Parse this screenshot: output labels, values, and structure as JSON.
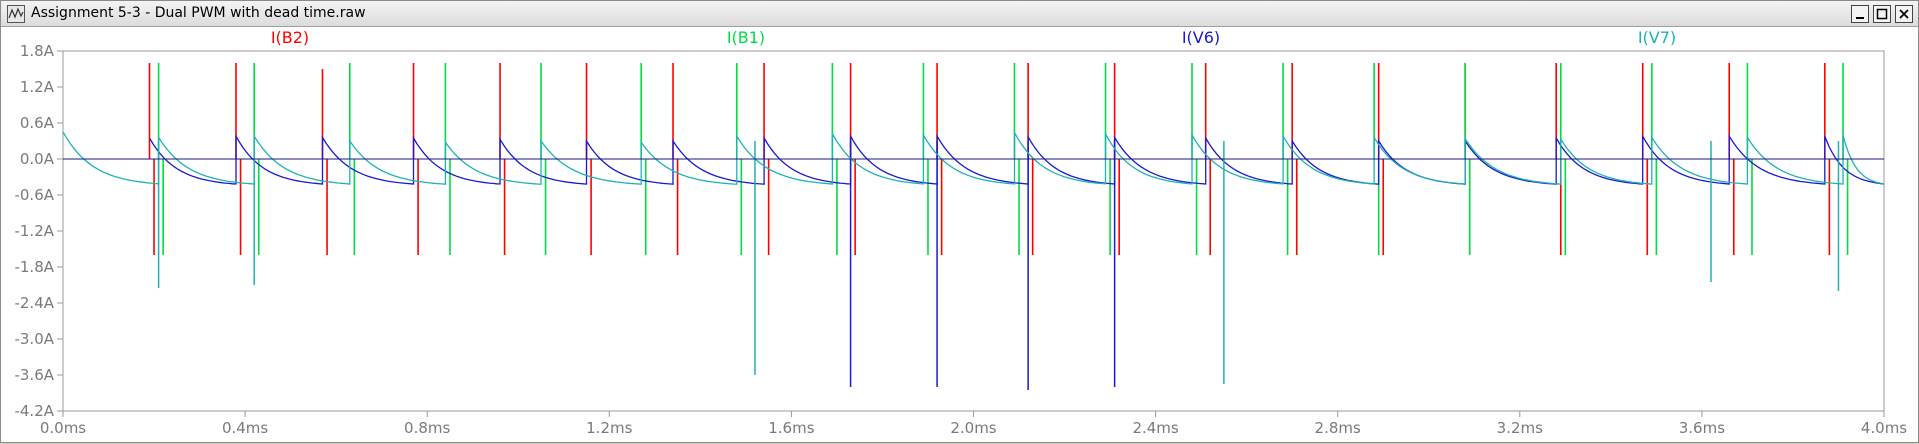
{
  "window": {
    "title": "Assignment 5-3 - Dual PWM with dead time.raw",
    "buttons": {
      "minimize": "minimize",
      "maximize": "maximize",
      "close": "close"
    }
  },
  "chart_data": {
    "type": "line",
    "title": "",
    "xlabel": "",
    "ylabel": "",
    "xlim": [
      0,
      4
    ],
    "ylim": [
      -4.2,
      1.8
    ],
    "x_unit": "ms",
    "y_unit": "A",
    "x_ticks": [
      "0.0ms",
      "0.4ms",
      "0.8ms",
      "1.2ms",
      "1.6ms",
      "2.0ms",
      "2.4ms",
      "2.8ms",
      "3.2ms",
      "3.6ms",
      "4.0ms"
    ],
    "y_ticks": [
      "1.8A",
      "1.2A",
      "0.6A",
      "0.0A",
      "-0.6A",
      "-1.2A",
      "-1.8A",
      "-2.4A",
      "-3.0A",
      "-3.6A",
      "-4.2A"
    ],
    "grid": false,
    "legend": "top",
    "series": [
      {
        "name": "I(B2)",
        "color": "#ff0000",
        "kind": "spikes",
        "events": [
          [
            0.19,
            1.6,
            -1.6
          ],
          [
            0.38,
            1.6,
            -1.6
          ],
          [
            0.57,
            1.5,
            -1.6
          ],
          [
            0.77,
            1.6,
            -1.6
          ],
          [
            0.96,
            1.6,
            -1.6
          ],
          [
            1.15,
            1.6,
            -1.6
          ],
          [
            1.34,
            1.6,
            -1.6
          ],
          [
            1.54,
            1.6,
            -1.6
          ],
          [
            1.73,
            1.6,
            -1.6
          ],
          [
            1.92,
            1.6,
            -1.6
          ],
          [
            2.12,
            1.6,
            -1.6
          ],
          [
            2.31,
            1.6,
            -1.6
          ],
          [
            2.51,
            1.6,
            -1.6
          ],
          [
            2.7,
            1.6,
            -1.6
          ],
          [
            2.89,
            1.6,
            -1.6
          ],
          [
            3.08,
            1.6,
            -1.6
          ],
          [
            3.28,
            1.6,
            -1.6
          ],
          [
            3.47,
            1.6,
            -1.6
          ],
          [
            3.66,
            1.6,
            -1.6
          ],
          [
            3.87,
            1.6,
            -1.6
          ]
        ]
      },
      {
        "name": "I(B1)",
        "color": "#00dd44",
        "kind": "spikes",
        "events": [
          [
            0.21,
            1.6,
            -1.6
          ],
          [
            0.42,
            1.6,
            -1.6
          ],
          [
            0.63,
            1.6,
            -1.6
          ],
          [
            0.84,
            1.6,
            -1.6
          ],
          [
            1.05,
            1.6,
            -1.6
          ],
          [
            1.27,
            1.6,
            -1.6
          ],
          [
            1.48,
            1.6,
            -1.6
          ],
          [
            1.69,
            1.6,
            -1.6
          ],
          [
            1.89,
            1.6,
            -1.6
          ],
          [
            2.09,
            1.6,
            -1.6
          ],
          [
            2.29,
            1.6,
            -1.6
          ],
          [
            2.48,
            1.6,
            -1.6
          ],
          [
            2.68,
            1.6,
            -1.6
          ],
          [
            2.88,
            1.6,
            -1.6
          ],
          [
            3.08,
            1.6,
            -1.6
          ],
          [
            3.29,
            1.6,
            -1.6
          ],
          [
            3.49,
            1.6,
            -1.6
          ],
          [
            3.7,
            1.6,
            -1.6
          ],
          [
            3.91,
            1.6,
            -1.6
          ]
        ]
      },
      {
        "name": "I(V6)",
        "color": "#1a1ad0",
        "kind": "decay",
        "events": [
          [
            0.19,
            0.35
          ],
          [
            0.38,
            0.38
          ],
          [
            0.57,
            0.36
          ],
          [
            0.77,
            0.35
          ],
          [
            0.96,
            0.33
          ],
          [
            1.15,
            0.3
          ],
          [
            1.34,
            0.3
          ],
          [
            1.54,
            0.35
          ],
          [
            1.73,
            0.38
          ],
          [
            1.92,
            0.38
          ],
          [
            2.12,
            0.37
          ],
          [
            2.31,
            0.36
          ],
          [
            2.51,
            0.35
          ],
          [
            2.7,
            0.3
          ],
          [
            2.89,
            0.3
          ],
          [
            3.08,
            0.3
          ],
          [
            3.28,
            0.35
          ],
          [
            3.47,
            0.38
          ],
          [
            3.66,
            0.38
          ],
          [
            3.87,
            0.38
          ]
        ],
        "floor": -0.45,
        "spike_down": [
          [
            1.73,
            -3.8
          ],
          [
            1.92,
            -3.8
          ],
          [
            2.12,
            -3.85
          ],
          [
            2.31,
            -3.8
          ]
        ]
      },
      {
        "name": "I(V7)",
        "color": "#20b2b2",
        "kind": "decay",
        "events": [
          [
            0.0,
            0.45
          ],
          [
            0.21,
            0.36
          ],
          [
            0.42,
            0.38
          ],
          [
            0.63,
            0.3
          ],
          [
            0.84,
            0.28
          ],
          [
            1.05,
            0.3
          ],
          [
            1.27,
            0.28
          ],
          [
            1.48,
            0.38
          ],
          [
            1.69,
            0.42
          ],
          [
            1.89,
            0.4
          ],
          [
            2.09,
            0.44
          ],
          [
            2.29,
            0.42
          ],
          [
            2.48,
            0.4
          ],
          [
            2.68,
            0.38
          ],
          [
            2.88,
            0.36
          ],
          [
            3.08,
            0.34
          ],
          [
            3.29,
            0.33
          ],
          [
            3.49,
            0.36
          ],
          [
            3.7,
            0.36
          ],
          [
            3.91,
            0.4
          ]
        ],
        "floor": -0.45,
        "spike_down": [
          [
            0.21,
            -2.15
          ],
          [
            0.42,
            -2.1
          ],
          [
            1.52,
            -3.6
          ],
          [
            2.55,
            -3.75
          ],
          [
            3.62,
            -2.05
          ],
          [
            3.9,
            -2.2
          ]
        ]
      }
    ]
  }
}
